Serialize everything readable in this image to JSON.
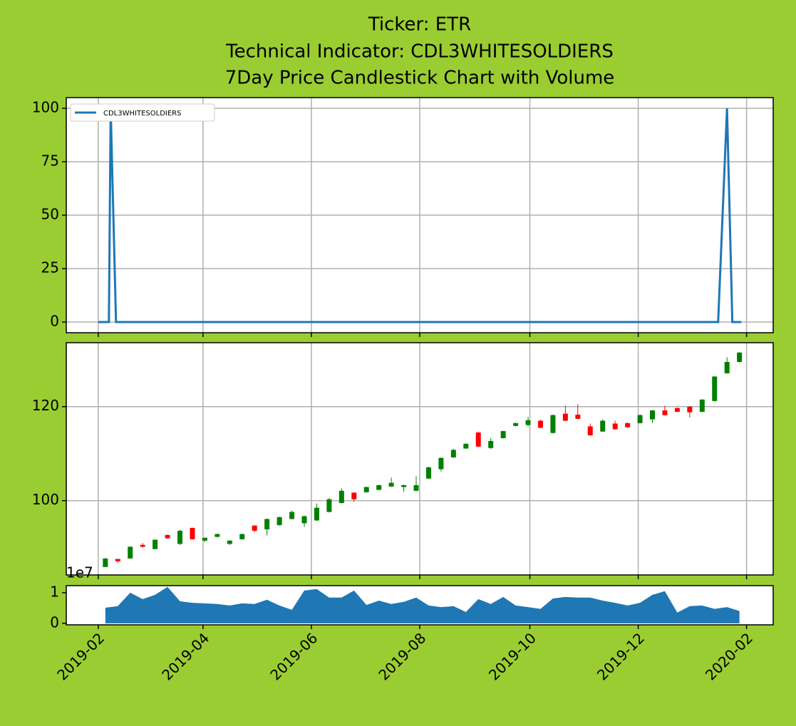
{
  "chart_data": [
    {
      "type": "line",
      "title": [
        "Ticker: ETR",
        "Technical Indicator: CDL3WHITESOLDIERS",
        "7Day Price Candlestick Chart with Volume"
      ],
      "x": [
        0,
        6,
        7,
        10,
        349,
        354,
        357,
        362
      ],
      "series": [
        {
          "name": "CDL3WHITESOLDIERS",
          "color": "#1f77b4",
          "values": [
            0,
            0,
            100,
            0,
            0,
            100,
            0,
            0
          ]
        }
      ],
      "ylim": [
        -5,
        105
      ],
      "yticks": [
        0,
        25,
        50,
        75,
        100
      ],
      "grid": true,
      "legend": "upper left"
    },
    {
      "type": "candlestick",
      "x": [
        4,
        11,
        18,
        25,
        32,
        39,
        46,
        53,
        60,
        67,
        74,
        81,
        88,
        95,
        102,
        109,
        116,
        123,
        130,
        137,
        144,
        151,
        158,
        165,
        172,
        179,
        186,
        193,
        200,
        207,
        214,
        221,
        228,
        235,
        242,
        249,
        256,
        263,
        270,
        277,
        284,
        291,
        298,
        305,
        312,
        319,
        326,
        333,
        340,
        347,
        354,
        361
      ],
      "open": [
        85.9,
        87.6,
        87.7,
        90.6,
        89.7,
        92.7,
        90.8,
        94.2,
        91.5,
        92.3,
        90.8,
        91.8,
        94.7,
        93.9,
        94.8,
        96.1,
        95.2,
        95.8,
        97.6,
        99.5,
        101.7,
        101.8,
        102.3,
        103.0,
        102.9,
        102.1,
        104.7,
        106.7,
        109.2,
        111.1,
        114.5,
        111.2,
        113.3,
        115.9,
        116.1,
        117.0,
        114.4,
        118.5,
        118.3,
        115.8,
        114.7,
        116.4,
        116.5,
        116.5,
        117.3,
        119.2,
        119.7,
        120.0,
        118.9,
        121.2,
        127.1,
        129.5
      ],
      "high": [
        87.8,
        87.6,
        90.3,
        91.0,
        91.7,
        92.8,
        93.8,
        94.3,
        92.2,
        93.0,
        91.6,
        93.0,
        94.8,
        96.2,
        96.6,
        97.9,
        96.8,
        99.4,
        100.6,
        102.6,
        101.8,
        103.0,
        103.4,
        104.9,
        103.4,
        105.2,
        107.2,
        109.2,
        111.0,
        112.2,
        114.7,
        113.3,
        114.9,
        116.6,
        117.8,
        117.2,
        118.3,
        120.2,
        120.5,
        116.4,
        117.3,
        117.0,
        116.6,
        118.3,
        119.3,
        120.2,
        119.8,
        120.1,
        121.6,
        126.5,
        130.5,
        131.6
      ],
      "low": [
        85.9,
        86.8,
        87.7,
        90.0,
        89.7,
        91.9,
        90.6,
        91.7,
        91.2,
        92.2,
        90.6,
        91.7,
        93.3,
        92.6,
        94.7,
        96.0,
        94.4,
        95.7,
        97.5,
        99.4,
        99.8,
        101.7,
        102.2,
        102.9,
        101.9,
        102.0,
        104.6,
        106.2,
        109.1,
        111.0,
        111.4,
        111.0,
        113.2,
        115.8,
        115.8,
        115.4,
        114.3,
        116.9,
        117.3,
        113.8,
        114.6,
        115.1,
        115.5,
        116.4,
        116.5,
        118.1,
        118.8,
        117.7,
        118.8,
        121.1,
        127.0,
        129.4
      ],
      "close": [
        87.7,
        87.1,
        90.2,
        90.2,
        91.7,
        92.0,
        93.6,
        91.8,
        92.1,
        92.9,
        91.5,
        92.9,
        93.6,
        96.1,
        96.5,
        97.6,
        96.7,
        98.5,
        100.3,
        102.1,
        100.3,
        102.9,
        103.3,
        103.8,
        103.3,
        103.3,
        107.1,
        109.1,
        110.8,
        112.1,
        111.5,
        112.7,
        114.8,
        116.5,
        117.1,
        115.5,
        118.2,
        117.0,
        117.4,
        113.9,
        117.0,
        115.2,
        115.6,
        118.2,
        119.2,
        118.2,
        118.9,
        118.8,
        121.5,
        126.4,
        129.5,
        131.5
      ],
      "up_color": "green",
      "down_color": "red",
      "ylim": [
        84.2,
        133.6
      ],
      "yticks": [
        100,
        120
      ],
      "grid": true
    },
    {
      "type": "area",
      "x": [
        4,
        11,
        18,
        25,
        32,
        39,
        46,
        53,
        60,
        67,
        74,
        81,
        88,
        95,
        102,
        109,
        116,
        123,
        130,
        137,
        144,
        151,
        158,
        165,
        172,
        179,
        186,
        193,
        200,
        207,
        214,
        221,
        228,
        235,
        242,
        249,
        256,
        263,
        270,
        277,
        284,
        291,
        298,
        305,
        312,
        319,
        326,
        333,
        340,
        347,
        354,
        361
      ],
      "values": [
        0.51,
        0.56,
        1.0,
        0.79,
        0.93,
        1.19,
        0.72,
        0.67,
        0.65,
        0.63,
        0.58,
        0.65,
        0.63,
        0.77,
        0.58,
        0.44,
        1.07,
        1.12,
        0.84,
        0.84,
        1.07,
        0.6,
        0.74,
        0.63,
        0.7,
        0.84,
        0.58,
        0.53,
        0.56,
        0.37,
        0.79,
        0.63,
        0.86,
        0.58,
        0.53,
        0.47,
        0.81,
        0.86,
        0.84,
        0.84,
        0.74,
        0.67,
        0.58,
        0.67,
        0.93,
        1.05,
        0.35,
        0.56,
        0.58,
        0.47,
        0.53,
        0.4
      ],
      "color": "#1f77b4",
      "offset_label": "1e7",
      "ylim": [
        -0.05,
        1.23
      ],
      "yticks": [
        0,
        1
      ],
      "grid": false,
      "xlim": [
        -18,
        380
      ],
      "xticks": [
        {
          "value": 0,
          "label": "2019-02"
        },
        {
          "value": 59,
          "label": "2019-04"
        },
        {
          "value": 120,
          "label": "2019-06"
        },
        {
          "value": 181,
          "label": "2019-08"
        },
        {
          "value": 243,
          "label": "2019-10"
        },
        {
          "value": 304,
          "label": "2019-12"
        },
        {
          "value": 365,
          "label": "2020-02"
        }
      ]
    }
  ]
}
